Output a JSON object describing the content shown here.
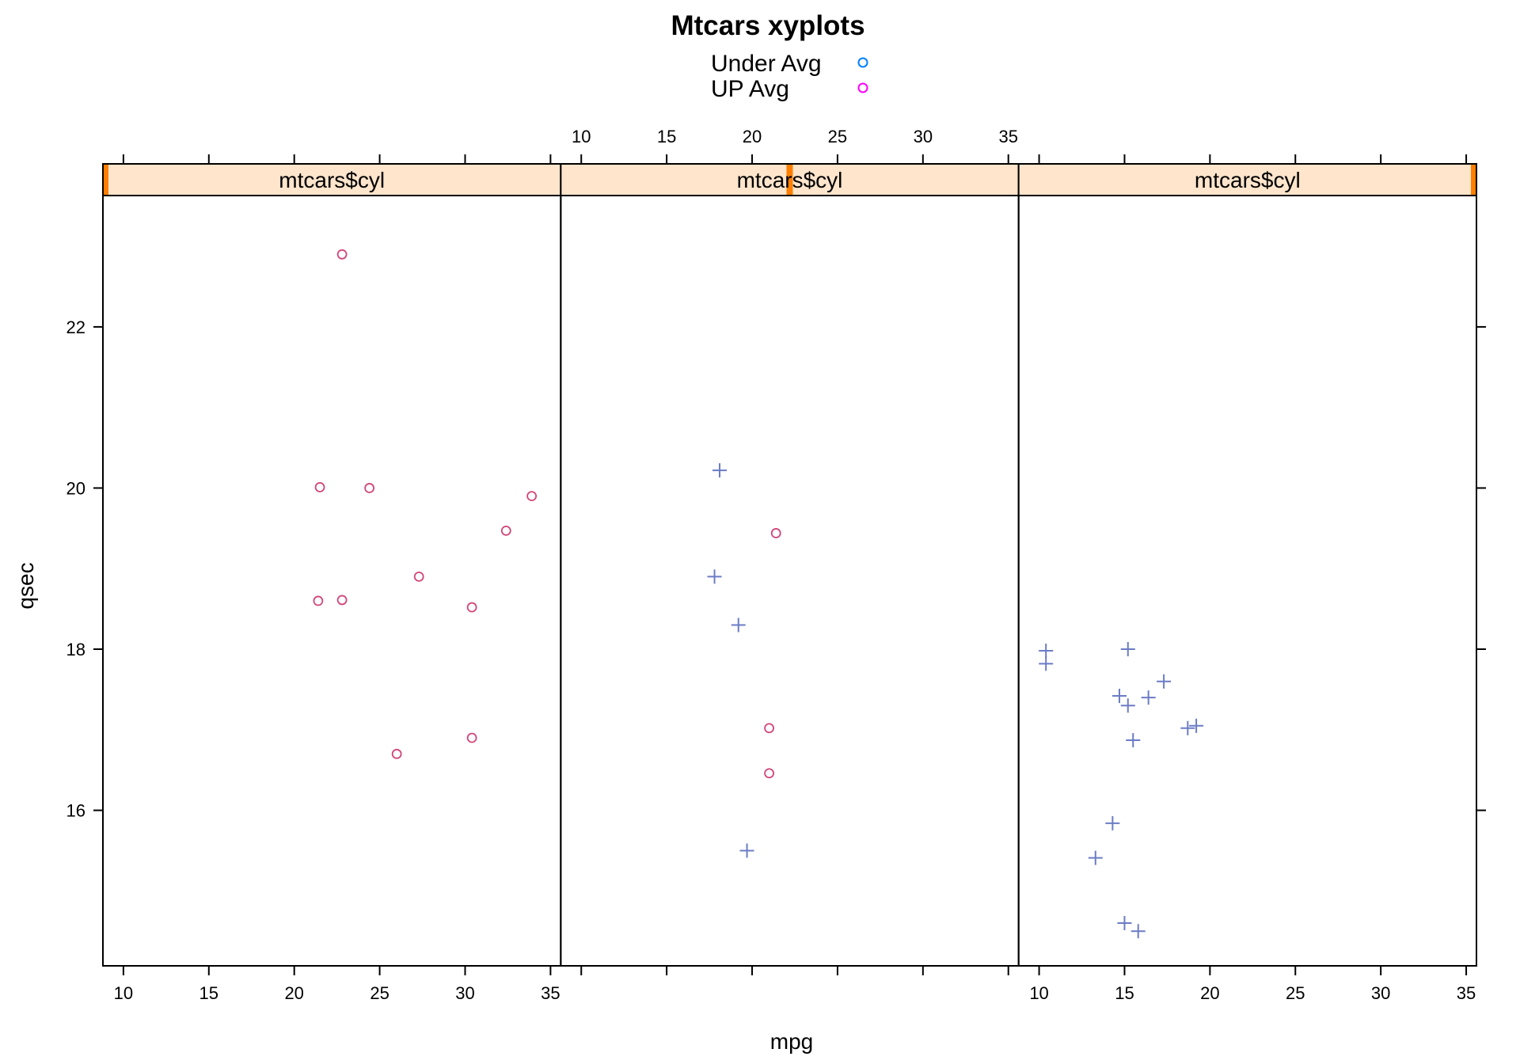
{
  "chart_data": {
    "type": "scatter",
    "title": "Mtcars xyplots",
    "xlabel": "mpg",
    "ylabel": "qsec",
    "xlim": [
      8.8,
      35.6
    ],
    "ylim": [
      14.07,
      23.63
    ],
    "x_ticks": [
      10,
      15,
      20,
      25,
      30,
      35
    ],
    "y_ticks": [
      16,
      18,
      20,
      22
    ],
    "grid": false,
    "legend": {
      "placement": "top-center",
      "entries": [
        {
          "name": "Under Avg",
          "color": "#0080ff",
          "symbol": "circle"
        },
        {
          "name": "UP Avg",
          "color": "#ff00ff",
          "symbol": "circle"
        }
      ]
    },
    "colors": {
      "circle": "#d2467a",
      "plus": "#6b7cc6",
      "strip_bg": "#ffe5cc",
      "strip_marker": "#ff7f00"
    },
    "panels": [
      {
        "strip_label": "mtcars$cyl",
        "strip_marker": 0,
        "points": [
          {
            "x": 22.8,
            "y": 18.61,
            "symbol": "circle"
          },
          {
            "x": 24.4,
            "y": 20.0,
            "symbol": "circle"
          },
          {
            "x": 22.8,
            "y": 22.9,
            "symbol": "circle"
          },
          {
            "x": 32.4,
            "y": 19.47,
            "symbol": "circle"
          },
          {
            "x": 30.4,
            "y": 18.52,
            "symbol": "circle"
          },
          {
            "x": 33.9,
            "y": 19.9,
            "symbol": "circle"
          },
          {
            "x": 21.5,
            "y": 20.01,
            "symbol": "circle"
          },
          {
            "x": 27.3,
            "y": 18.9,
            "symbol": "circle"
          },
          {
            "x": 26.0,
            "y": 16.7,
            "symbol": "circle"
          },
          {
            "x": 30.4,
            "y": 16.9,
            "symbol": "circle"
          },
          {
            "x": 21.4,
            "y": 18.6,
            "symbol": "circle"
          }
        ]
      },
      {
        "strip_label": "mtcars$cyl",
        "strip_marker": 0.5,
        "points": [
          {
            "x": 21.0,
            "y": 16.46,
            "symbol": "circle"
          },
          {
            "x": 21.0,
            "y": 17.02,
            "symbol": "circle"
          },
          {
            "x": 21.4,
            "y": 19.44,
            "symbol": "circle"
          },
          {
            "x": 18.1,
            "y": 20.22,
            "symbol": "plus"
          },
          {
            "x": 19.2,
            "y": 18.3,
            "symbol": "plus"
          },
          {
            "x": 17.8,
            "y": 18.9,
            "symbol": "plus"
          },
          {
            "x": 19.7,
            "y": 15.5,
            "symbol": "plus"
          }
        ]
      },
      {
        "strip_label": "mtcars$cyl",
        "strip_marker": 1,
        "points": [
          {
            "x": 18.7,
            "y": 17.02,
            "symbol": "plus"
          },
          {
            "x": 14.3,
            "y": 15.84,
            "symbol": "plus"
          },
          {
            "x": 16.4,
            "y": 17.4,
            "symbol": "plus"
          },
          {
            "x": 17.3,
            "y": 17.6,
            "symbol": "plus"
          },
          {
            "x": 15.2,
            "y": 18.0,
            "symbol": "plus"
          },
          {
            "x": 10.4,
            "y": 17.98,
            "symbol": "plus"
          },
          {
            "x": 10.4,
            "y": 17.82,
            "symbol": "plus"
          },
          {
            "x": 14.7,
            "y": 17.42,
            "symbol": "plus"
          },
          {
            "x": 15.5,
            "y": 16.87,
            "symbol": "plus"
          },
          {
            "x": 15.2,
            "y": 17.3,
            "symbol": "plus"
          },
          {
            "x": 13.3,
            "y": 15.41,
            "symbol": "plus"
          },
          {
            "x": 19.2,
            "y": 17.05,
            "symbol": "plus"
          },
          {
            "x": 15.8,
            "y": 14.5,
            "symbol": "plus"
          },
          {
            "x": 15.0,
            "y": 14.6,
            "symbol": "plus"
          }
        ]
      }
    ]
  }
}
